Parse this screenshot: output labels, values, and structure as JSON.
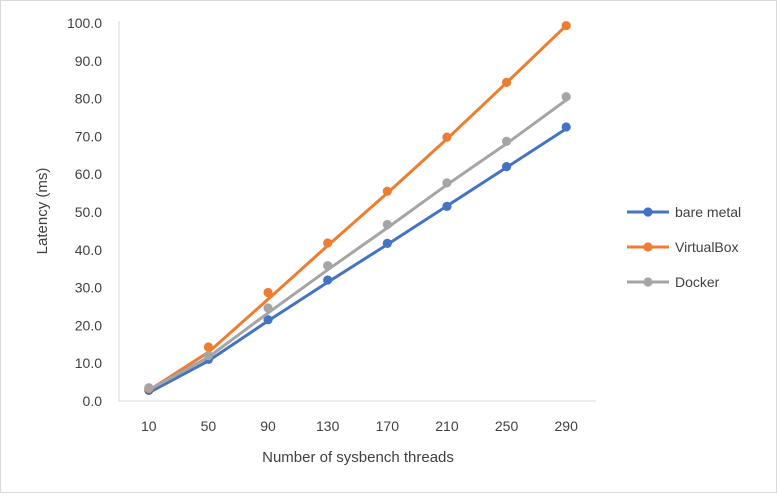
{
  "chart_data": {
    "type": "line",
    "xlabel": "Number  of sysbench threads",
    "ylabel": "Latency (ms)",
    "categories": [
      "10",
      "50",
      "90",
      "130",
      "170",
      "210",
      "250",
      "290"
    ],
    "ylim": [
      0,
      100
    ],
    "ytick_labels": [
      "0.0",
      "10.0",
      "20.0",
      "30.0",
      "40.0",
      "50.0",
      "60.0",
      "70.0",
      "80.0",
      "90.0",
      "100.0"
    ],
    "grid": false,
    "legend_position": "right",
    "series": [
      {
        "name": "bare metal",
        "color": "#4472c4",
        "points": [
          2.8,
          11.0,
          21.5,
          32.0,
          41.7,
          51.5,
          62.0,
          72.5
        ],
        "trend": [
          2.2,
          10.6,
          21.2,
          31.4,
          41.4,
          51.6,
          61.8,
          72.0
        ]
      },
      {
        "name": "VirtualBox",
        "color": "#ed7d31",
        "points": [
          3.3,
          14.3,
          28.7,
          41.8,
          55.5,
          69.8,
          84.3,
          99.3
        ],
        "trend": [
          2.8,
          12.9,
          26.9,
          41.1,
          55.0,
          69.3,
          84.2,
          99.3
        ]
      },
      {
        "name": "Docker",
        "color": "#a5a5a5",
        "points": [
          3.5,
          12.0,
          24.6,
          35.8,
          46.7,
          57.7,
          68.7,
          80.5
        ],
        "trend": [
          2.9,
          11.6,
          23.3,
          34.7,
          45.8,
          57.2,
          68.1,
          79.6
        ]
      }
    ]
  }
}
